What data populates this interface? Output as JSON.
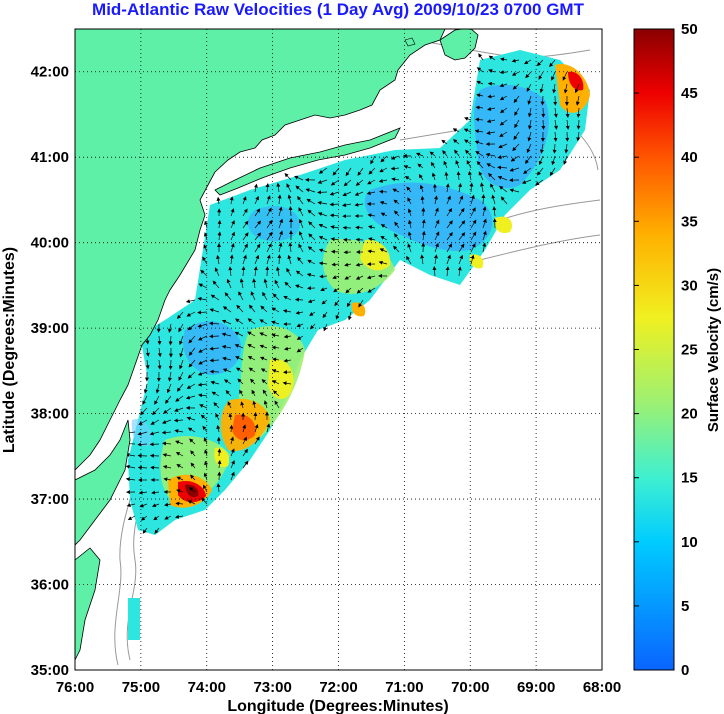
{
  "title": "Mid-Atlantic Raw Velocities (1 Day Avg) 2009/10/23 0700 GMT",
  "xlabel": "Longitude (Degrees:Minutes)",
  "ylabel": "Latitude (Degrees:Minutes)",
  "colorbar_label": "Surface Velocity (cm/s)",
  "colors": {
    "land": "#5ff0a8",
    "title": "#1a1aff",
    "bathymetry": "#999999"
  },
  "chart_data": {
    "type": "heatmap",
    "x_ticks": [
      "76:00",
      "75:00",
      "74:00",
      "73:00",
      "72:00",
      "71:00",
      "70:00",
      "69:00",
      "68:00"
    ],
    "y_ticks": [
      "35:00",
      "36:00",
      "37:00",
      "38:00",
      "39:00",
      "40:00",
      "41:00",
      "42:00"
    ],
    "xlim": [
      -76,
      -68
    ],
    "ylim": [
      35,
      42.5
    ],
    "grid": true,
    "colorbar": {
      "ticks": [
        "0",
        "5",
        "10",
        "15",
        "20",
        "25",
        "30",
        "35",
        "40",
        "45",
        "50"
      ],
      "range": [
        0,
        50
      ]
    }
  }
}
